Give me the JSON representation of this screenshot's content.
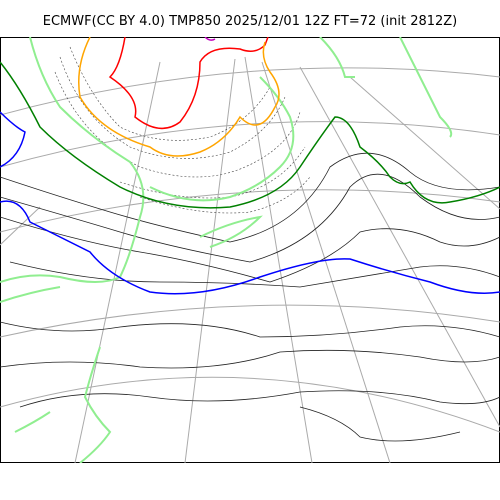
{
  "title": "ECMWF(CC BY 4.0) TMP850 2025/12/01 12Z FT=72 (init 2812Z)",
  "map": {
    "field": "TMP850",
    "contour_colors": {
      "warm": "#0000ff",
      "mid": "#008000",
      "cool": "#ffa500",
      "cold": "#ff0000",
      "very_cold": "#c000c0",
      "coast": "#90ee90",
      "isotherm": "#000000",
      "graticule": "#aaaaaa"
    }
  }
}
